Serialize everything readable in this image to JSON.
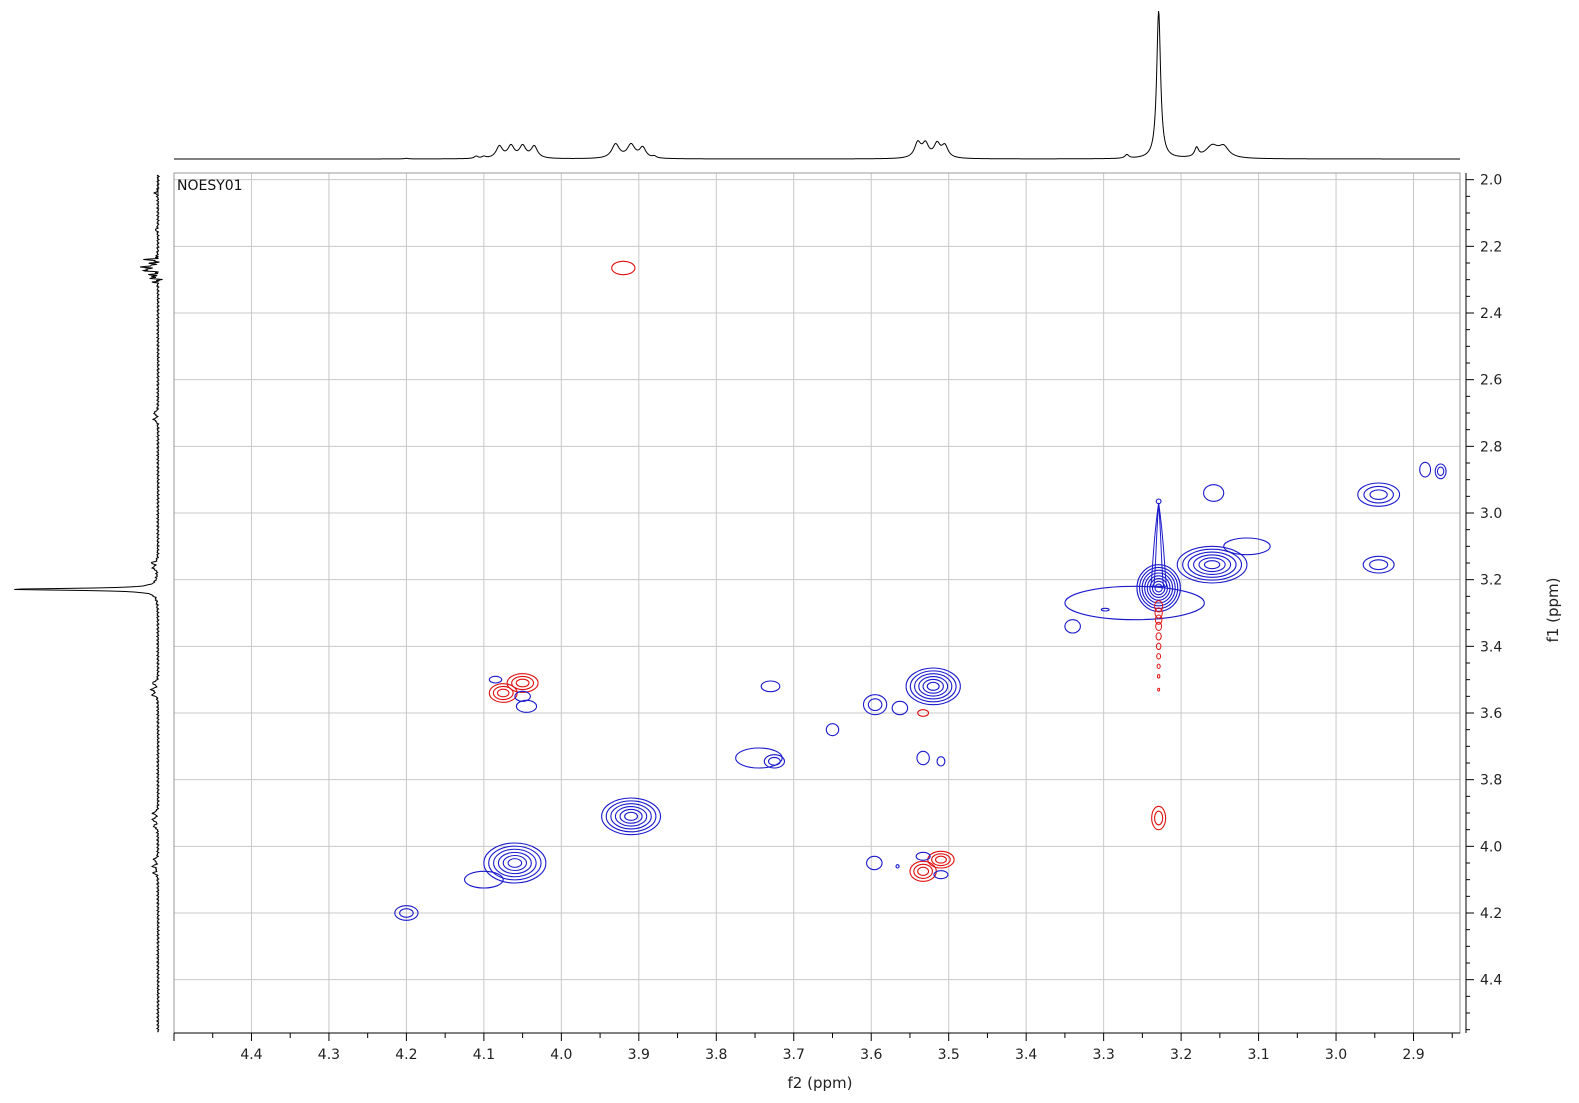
{
  "chart_data": {
    "type": "heatmap",
    "subtype": "2D NMR contour plot (NOESY)",
    "title": "NOESY01",
    "xlabel": "f2 (ppm)",
    "ylabel": "f1 (ppm)",
    "xlim": [
      4.5,
      2.84
    ],
    "ylim": [
      1.98,
      4.56
    ],
    "x_axis_reversed": true,
    "y_axis_down_increasing": true,
    "x_ticks": [
      "4.4",
      "4.3",
      "4.2",
      "4.1",
      "4.0",
      "3.9",
      "3.8",
      "3.7",
      "3.6",
      "3.5",
      "3.4",
      "3.3",
      "3.2",
      "3.1",
      "3.0",
      "2.9"
    ],
    "y_ticks": [
      "2.0",
      "2.2",
      "2.4",
      "2.6",
      "2.8",
      "3.0",
      "3.2",
      "3.4",
      "3.6",
      "3.8",
      "4.0",
      "4.2",
      "4.4"
    ],
    "grid": true,
    "colors": {
      "positive": "#1a1acc",
      "negative": "#e01010",
      "grid": "#c8c8c8",
      "axis": "#000000"
    },
    "top_projection": {
      "peaks": [
        {
          "ppm": 4.2,
          "height": 0.004,
          "width": 0.003
        },
        {
          "ppm": 4.11,
          "height": 0.015,
          "width": 0.003
        },
        {
          "ppm": 4.1,
          "height": 0.012,
          "width": 0.003
        },
        {
          "ppm": 4.08,
          "height": 0.08,
          "width": 0.005
        },
        {
          "ppm": 4.065,
          "height": 0.08,
          "width": 0.005
        },
        {
          "ppm": 4.05,
          "height": 0.08,
          "width": 0.005
        },
        {
          "ppm": 4.035,
          "height": 0.08,
          "width": 0.005
        },
        {
          "ppm": 3.93,
          "height": 0.095,
          "width": 0.006
        },
        {
          "ppm": 3.91,
          "height": 0.09,
          "width": 0.006
        },
        {
          "ppm": 3.895,
          "height": 0.07,
          "width": 0.005
        },
        {
          "ppm": 3.88,
          "height": 0.012,
          "width": 0.003
        },
        {
          "ppm": 3.54,
          "height": 0.1,
          "width": 0.005
        },
        {
          "ppm": 3.53,
          "height": 0.09,
          "width": 0.005
        },
        {
          "ppm": 3.515,
          "height": 0.09,
          "width": 0.005
        },
        {
          "ppm": 3.505,
          "height": 0.08,
          "width": 0.005
        },
        {
          "ppm": 3.27,
          "height": 0.025,
          "width": 0.003
        },
        {
          "ppm": 3.229,
          "height": 1.0,
          "width": 0.003
        },
        {
          "ppm": 3.18,
          "height": 0.06,
          "width": 0.003
        },
        {
          "ppm": 3.16,
          "height": 0.08,
          "width": 0.01
        },
        {
          "ppm": 3.145,
          "height": 0.07,
          "width": 0.008
        }
      ]
    },
    "left_projection": {
      "peaks": [
        {
          "ppm": 2.04,
          "height": 0.02,
          "width": 0.004
        },
        {
          "ppm": 2.15,
          "height": 0.015,
          "width": 0.004
        },
        {
          "ppm": 2.24,
          "height": 0.05,
          "width": 0.004
        },
        {
          "ppm": 2.26,
          "height": 0.07,
          "width": 0.004
        },
        {
          "ppm": 2.27,
          "height": 0.08,
          "width": 0.004
        },
        {
          "ppm": 2.29,
          "height": 0.04,
          "width": 0.004
        },
        {
          "ppm": 2.7,
          "height": 0.03,
          "width": 0.004
        },
        {
          "ppm": 2.72,
          "height": 0.03,
          "width": 0.004
        },
        {
          "ppm": 3.15,
          "height": 0.04,
          "width": 0.004
        },
        {
          "ppm": 3.165,
          "height": 0.035,
          "width": 0.004
        },
        {
          "ppm": 3.229,
          "height": 1.0,
          "width": 0.0035
        },
        {
          "ppm": 3.51,
          "height": 0.04,
          "width": 0.004
        },
        {
          "ppm": 3.53,
          "height": 0.045,
          "width": 0.004
        },
        {
          "ppm": 3.545,
          "height": 0.04,
          "width": 0.004
        },
        {
          "ppm": 3.9,
          "height": 0.035,
          "width": 0.004
        },
        {
          "ppm": 3.92,
          "height": 0.04,
          "width": 0.004
        },
        {
          "ppm": 3.94,
          "height": 0.03,
          "width": 0.004
        },
        {
          "ppm": 4.04,
          "height": 0.03,
          "width": 0.004
        },
        {
          "ppm": 4.06,
          "height": 0.035,
          "width": 0.004
        },
        {
          "ppm": 4.08,
          "height": 0.03,
          "width": 0.004
        }
      ]
    },
    "cross_peaks": [
      {
        "f2": 3.92,
        "f1": 2.265,
        "sign": "negative",
        "levels": 1,
        "rx": 0.015,
        "ry": 0.02
      },
      {
        "f2": 4.075,
        "f1": 3.54,
        "sign": "negative",
        "levels": 3,
        "rx": 0.018,
        "ry": 0.028
      },
      {
        "f2": 4.05,
        "f1": 3.51,
        "sign": "negative",
        "levels": 3,
        "rx": 0.02,
        "ry": 0.028
      },
      {
        "f2": 4.085,
        "f1": 3.5,
        "sign": "positive",
        "levels": 1,
        "rx": 0.008,
        "ry": 0.01
      },
      {
        "f2": 4.05,
        "f1": 3.55,
        "sign": "positive",
        "levels": 1,
        "rx": 0.01,
        "ry": 0.015
      },
      {
        "f2": 4.045,
        "f1": 3.58,
        "sign": "positive",
        "levels": 1,
        "rx": 0.013,
        "ry": 0.018
      },
      {
        "f2": 3.73,
        "f1": 3.52,
        "sign": "positive",
        "levels": 1,
        "rx": 0.012,
        "ry": 0.016
      },
      {
        "f2": 3.52,
        "f1": 3.52,
        "sign": "positive",
        "levels": 6,
        "rx": 0.035,
        "ry": 0.055
      },
      {
        "f2": 3.595,
        "f1": 3.575,
        "sign": "positive",
        "levels": 2,
        "rx": 0.015,
        "ry": 0.03
      },
      {
        "f2": 3.563,
        "f1": 3.585,
        "sign": "positive",
        "levels": 1,
        "rx": 0.01,
        "ry": 0.02
      },
      {
        "f2": 3.533,
        "f1": 3.6,
        "sign": "negative",
        "levels": 1,
        "rx": 0.007,
        "ry": 0.01
      },
      {
        "f2": 3.65,
        "f1": 3.65,
        "sign": "positive",
        "levels": 1,
        "rx": 0.008,
        "ry": 0.018
      },
      {
        "f2": 3.745,
        "f1": 3.735,
        "sign": "positive",
        "levels": 1,
        "rx": 0.03,
        "ry": 0.03
      },
      {
        "f2": 3.725,
        "f1": 3.745,
        "sign": "positive",
        "levels": 2,
        "rx": 0.013,
        "ry": 0.02
      },
      {
        "f2": 3.533,
        "f1": 3.735,
        "sign": "positive",
        "levels": 1,
        "rx": 0.008,
        "ry": 0.02
      },
      {
        "f2": 3.51,
        "f1": 3.745,
        "sign": "positive",
        "levels": 1,
        "rx": 0.005,
        "ry": 0.014
      },
      {
        "f2": 3.91,
        "f1": 3.91,
        "sign": "positive",
        "levels": 6,
        "rx": 0.038,
        "ry": 0.055
      },
      {
        "f2": 4.06,
        "f1": 4.05,
        "sign": "positive",
        "levels": 6,
        "rx": 0.04,
        "ry": 0.06
      },
      {
        "f2": 4.1,
        "f1": 4.1,
        "sign": "positive",
        "levels": 1,
        "rx": 0.025,
        "ry": 0.025
      },
      {
        "f2": 4.2,
        "f1": 4.2,
        "sign": "positive",
        "levels": 2,
        "rx": 0.015,
        "ry": 0.022
      },
      {
        "f2": 3.596,
        "f1": 4.05,
        "sign": "positive",
        "levels": 1,
        "rx": 0.01,
        "ry": 0.02
      },
      {
        "f2": 3.533,
        "f1": 4.075,
        "sign": "negative",
        "levels": 3,
        "rx": 0.017,
        "ry": 0.03
      },
      {
        "f2": 3.51,
        "f1": 4.04,
        "sign": "negative",
        "levels": 3,
        "rx": 0.017,
        "ry": 0.025
      },
      {
        "f2": 3.533,
        "f1": 4.03,
        "sign": "positive",
        "levels": 1,
        "rx": 0.009,
        "ry": 0.012
      },
      {
        "f2": 3.51,
        "f1": 4.085,
        "sign": "positive",
        "levels": 1,
        "rx": 0.009,
        "ry": 0.012
      },
      {
        "f2": 3.566,
        "f1": 4.06,
        "sign": "positive",
        "levels": 1,
        "rx": 0.002,
        "ry": 0.005
      },
      {
        "f2": 3.229,
        "f1": 3.915,
        "sign": "negative",
        "levels": 2,
        "rx": 0.009,
        "ry": 0.035
      },
      {
        "f2": 3.229,
        "f1": 3.225,
        "sign": "positive",
        "levels": 8,
        "rx": 0.028,
        "ry": 0.07
      },
      {
        "f2": 3.26,
        "f1": 3.27,
        "sign": "positive",
        "levels": 1,
        "rx": 0.09,
        "ry": 0.05
      },
      {
        "f2": 3.16,
        "f1": 3.155,
        "sign": "positive",
        "levels": 6,
        "rx": 0.045,
        "ry": 0.055
      },
      {
        "f2": 3.115,
        "f1": 3.1,
        "sign": "positive",
        "levels": 1,
        "rx": 0.03,
        "ry": 0.025
      },
      {
        "f2": 3.34,
        "f1": 3.34,
        "sign": "positive",
        "levels": 1,
        "rx": 0.01,
        "ry": 0.02
      },
      {
        "f2": 3.298,
        "f1": 3.29,
        "sign": "positive",
        "levels": 1,
        "rx": 0.005,
        "ry": 0.004
      },
      {
        "f2": 3.158,
        "f1": 2.94,
        "sign": "positive",
        "levels": 1,
        "rx": 0.013,
        "ry": 0.025
      },
      {
        "f2": 2.945,
        "f1": 2.945,
        "sign": "positive",
        "levels": 3,
        "rx": 0.027,
        "ry": 0.035
      },
      {
        "f2": 2.945,
        "f1": 3.155,
        "sign": "positive",
        "levels": 2,
        "rx": 0.02,
        "ry": 0.025
      },
      {
        "f2": 2.885,
        "f1": 2.87,
        "sign": "positive",
        "levels": 1,
        "rx": 0.007,
        "ry": 0.022
      },
      {
        "f2": 2.865,
        "f1": 2.875,
        "sign": "positive",
        "levels": 2,
        "rx": 0.007,
        "ry": 0.022
      },
      {
        "f2": 3.229,
        "f1": 2.965,
        "sign": "positive",
        "levels": 1,
        "rx": 0.003,
        "ry": 0.007
      }
    ],
    "diagonal_ridge_vertical": {
      "f2": 3.229,
      "f1_from": 2.97,
      "f1_to": 3.22,
      "sign": "positive"
    },
    "negative_tail": {
      "f2": 3.229,
      "f1_values": [
        3.28,
        3.3,
        3.32,
        3.34,
        3.37,
        3.4,
        3.43,
        3.46,
        3.49,
        3.53
      ],
      "sign": "negative"
    }
  }
}
